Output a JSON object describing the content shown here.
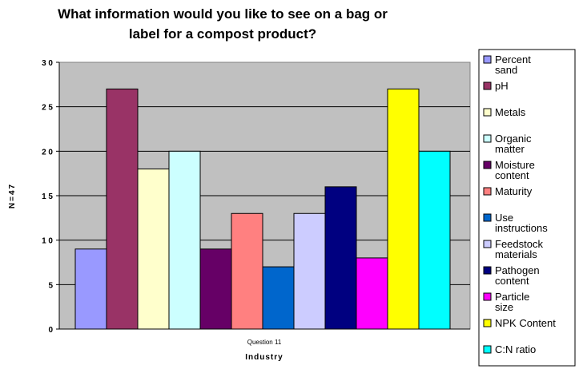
{
  "chart_data": {
    "type": "bar",
    "title_lines": [
      "What information would you like to see on a bag or",
      "label for a compost product?"
    ],
    "xlabel": "Industry",
    "ylabel": "N=47",
    "categories": [
      "Question 11"
    ],
    "ytick_labels": [
      "0",
      "5",
      "1 0",
      "1 5",
      "2 0",
      "2 5",
      "3 0"
    ],
    "ylim": [
      0,
      30
    ],
    "grid": true,
    "legend_position": "right",
    "plot_background": "#C0C0C0",
    "series": [
      {
        "name": "Percent sand",
        "values": [
          9
        ],
        "color": "#9999FF"
      },
      {
        "name": "pH",
        "values": [
          27
        ],
        "color": "#993366"
      },
      {
        "name": "Metals",
        "values": [
          18
        ],
        "color": "#FFFFCC"
      },
      {
        "name": "Organic matter",
        "values": [
          20
        ],
        "color": "#CCFFFF"
      },
      {
        "name": "Moisture content",
        "values": [
          9
        ],
        "color": "#660066"
      },
      {
        "name": "Maturity",
        "values": [
          13
        ],
        "color": "#FF8080"
      },
      {
        "name": "Use instructions",
        "values": [
          7
        ],
        "color": "#0066CC"
      },
      {
        "name": "Feedstock materials",
        "values": [
          13
        ],
        "color": "#CCCCFF"
      },
      {
        "name": "Pathogen content",
        "values": [
          16
        ],
        "color": "#000080"
      },
      {
        "name": "Particle size",
        "values": [
          8
        ],
        "color": "#FF00FF"
      },
      {
        "name": "NPK Content",
        "values": [
          27
        ],
        "color": "#FFFF00"
      },
      {
        "name": "C:N ratio",
        "values": [
          20
        ],
        "color": "#00FFFF"
      }
    ]
  }
}
